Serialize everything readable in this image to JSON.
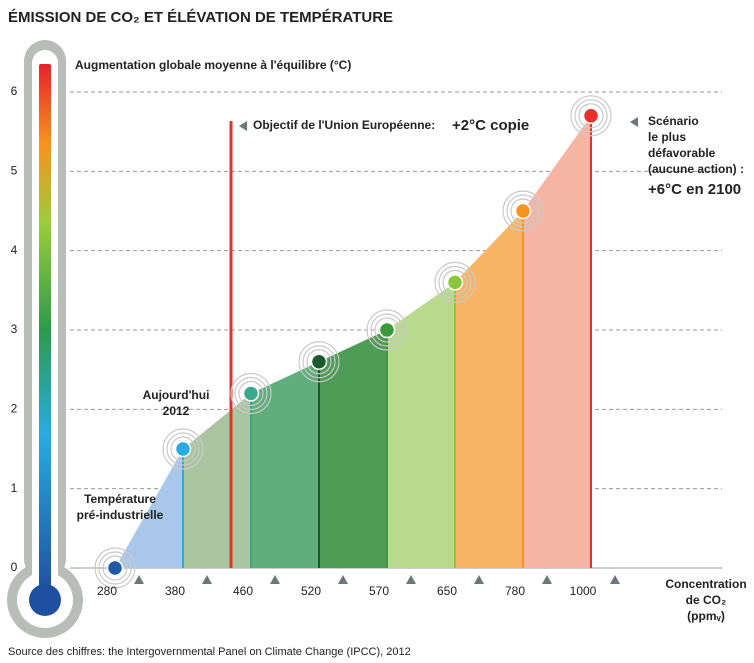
{
  "chart_data": {
    "type": "area",
    "title": "ÉMISSION DE CO₂ ET ÉLÉVATION DE TEMPÉRATURE",
    "ylabel": "Augmentation globale moyenne à l'équilibre (°C)",
    "xlabel": [
      "Concentration",
      "de CO₂",
      "(ppmᵥ)"
    ],
    "categories": [
      "280",
      "380",
      "460",
      "520",
      "570",
      "650",
      "780",
      "1000"
    ],
    "values": [
      0,
      1.5,
      2.2,
      2.6,
      3.0,
      3.6,
      4.5,
      5.7
    ],
    "colors": [
      "#1f5aa6",
      "#29abe2",
      "#3aa88a",
      "#1a5a2c",
      "#3a9a3a",
      "#8cc63f",
      "#f7931e",
      "#e8302a"
    ],
    "area_colors": [
      "#a9c7ea",
      "#a9c6a0",
      "#5fae7c",
      "#4f9c56",
      "#b7da8c",
      "#f7b565",
      "#f6b4a2"
    ],
    "ylim": [
      0,
      6
    ],
    "yticks": [
      0,
      1,
      2,
      3,
      4,
      5,
      6
    ],
    "grid": true,
    "annotations": {
      "pre_industrial": [
        "Température",
        "pré-industrielle"
      ],
      "today": [
        "Aujourd'hui",
        "2012"
      ],
      "eu_label": "Objectif de l'Union Européenne:",
      "eu_value": "+2°C copie",
      "worst_label": [
        "Scénario",
        "le plus",
        "défavorable",
        "(aucune action) :"
      ],
      "worst_value": "+6°C en 2100"
    },
    "source": "Source des chiffres: the Intergovernmental Panel on Climate Change (IPCC), 2012"
  }
}
